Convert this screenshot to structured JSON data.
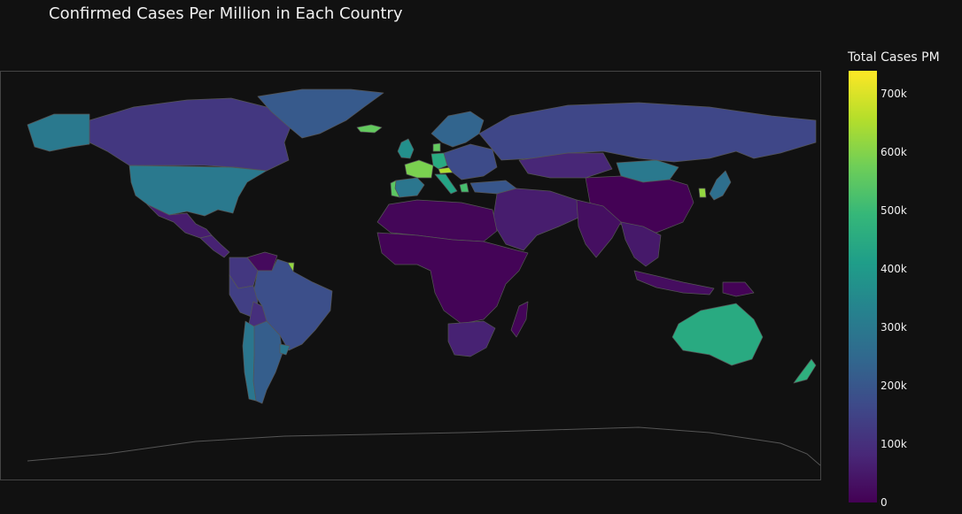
{
  "title": "Confirmed Cases Per Million in Each Country",
  "colorbar": {
    "title": "Total Cases PM",
    "ticks": [
      "0",
      "100k",
      "200k",
      "300k",
      "400k",
      "500k",
      "600k",
      "700k"
    ],
    "tick_values": [
      0,
      100000,
      200000,
      300000,
      400000,
      500000,
      600000,
      700000
    ],
    "max": 740000,
    "colorscale": "viridis"
  },
  "colors": {
    "background": "#111111",
    "border": "#555555",
    "viridis": [
      "#440154",
      "#482878",
      "#3e4989",
      "#31688e",
      "#26828e",
      "#1f9e89",
      "#35b779",
      "#6ece58",
      "#b5de2b",
      "#fde725"
    ]
  },
  "chart_data": {
    "type": "choropleth",
    "metric": "Total Cases PM",
    "regions": [
      {
        "name": "Canada",
        "value": 120000
      },
      {
        "name": "Alaska (USA)",
        "value": 300000
      },
      {
        "name": "United States",
        "value": 300000
      },
      {
        "name": "Mexico",
        "value": 60000
      },
      {
        "name": "Central America",
        "value": 70000
      },
      {
        "name": "Greenland",
        "value": 210000
      },
      {
        "name": "Iceland",
        "value": 560000
      },
      {
        "name": "Venezuela",
        "value": 20000
      },
      {
        "name": "Colombia",
        "value": 120000
      },
      {
        "name": "French Guiana",
        "value": 620000
      },
      {
        "name": "Brazil",
        "value": 180000
      },
      {
        "name": "Peru",
        "value": 140000
      },
      {
        "name": "Bolivia",
        "value": 100000
      },
      {
        "name": "Argentina",
        "value": 220000
      },
      {
        "name": "Chile",
        "value": 290000
      },
      {
        "name": "Uruguay",
        "value": 290000
      },
      {
        "name": "France",
        "value": 590000
      },
      {
        "name": "Portugal",
        "value": 550000
      },
      {
        "name": "Spain",
        "value": 290000
      },
      {
        "name": "United Kingdom",
        "value": 370000
      },
      {
        "name": "Germany",
        "value": 450000
      },
      {
        "name": "Austria",
        "value": 650000
      },
      {
        "name": "Italy",
        "value": 430000
      },
      {
        "name": "Denmark",
        "value": 560000
      },
      {
        "name": "Scandinavia",
        "value": 240000
      },
      {
        "name": "Eastern Europe",
        "value": 170000
      },
      {
        "name": "Greece",
        "value": 520000
      },
      {
        "name": "Turkey",
        "value": 200000
      },
      {
        "name": "Russia",
        "value": 160000
      },
      {
        "name": "Kazakhstan",
        "value": 80000
      },
      {
        "name": "Mongolia",
        "value": 300000
      },
      {
        "name": "China",
        "value": 2000
      },
      {
        "name": "Middle East",
        "value": 60000
      },
      {
        "name": "India",
        "value": 30000
      },
      {
        "name": "South Korea",
        "value": 620000
      },
      {
        "name": "Japan",
        "value": 270000
      },
      {
        "name": "Southeast Asia",
        "value": 50000
      },
      {
        "name": "Indonesia",
        "value": 25000
      },
      {
        "name": "North Africa",
        "value": 10000
      },
      {
        "name": "Sub-Saharan Africa",
        "value": 6000
      },
      {
        "name": "South Africa",
        "value": 70000
      },
      {
        "name": "Madagascar",
        "value": 8000
      },
      {
        "name": "Australia",
        "value": 450000
      },
      {
        "name": "New Zealand",
        "value": 470000
      },
      {
        "name": "Papua New Guinea",
        "value": 5000
      }
    ]
  }
}
